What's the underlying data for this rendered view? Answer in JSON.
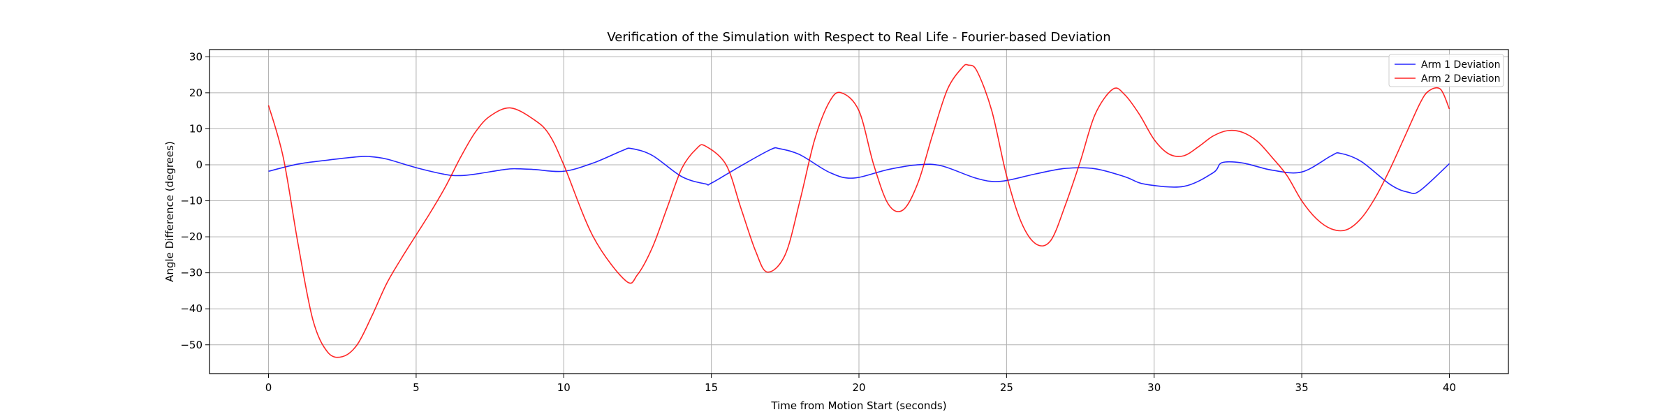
{
  "chart_data": {
    "type": "line",
    "title": "Verification of the Simulation with Respect to Real Life - Fourier-based Deviation",
    "xlabel": "Time from Motion Start (seconds)",
    "ylabel": "Angle Difference (degrees)",
    "xlim": [
      -2,
      42
    ],
    "ylim": [
      -58,
      32
    ],
    "xticks": [
      0,
      5,
      10,
      15,
      20,
      25,
      30,
      35,
      40
    ],
    "yticks": [
      -50,
      -40,
      -30,
      -20,
      -10,
      0,
      10,
      20,
      30
    ],
    "grid": true,
    "legend_position": "top-right",
    "series": [
      {
        "name": "Arm 1 Deviation",
        "color": "#0000ff",
        "x": [
          0,
          1,
          2,
          3,
          3.4,
          4,
          5,
          6,
          6.5,
          7,
          8,
          8.4,
          9,
          10,
          11,
          12,
          12.3,
          13,
          14,
          14.8,
          15,
          16,
          17,
          17.3,
          18,
          19,
          19.8,
          21,
          22,
          22.8,
          24,
          24.8,
          26,
          27,
          28,
          29,
          29.7,
          31,
          32,
          32.3,
          33,
          34,
          35,
          36,
          36.3,
          37,
          38,
          38.6,
          39,
          40
        ],
        "y": [
          -1.8,
          0.2,
          1.3,
          2.2,
          2.3,
          1.6,
          -0.8,
          -2.7,
          -3.0,
          -2.6,
          -1.3,
          -1.1,
          -1.3,
          -1.8,
          0.5,
          4.0,
          4.5,
          2.6,
          -3.3,
          -5.3,
          -5.1,
          -0.3,
          4.2,
          4.5,
          2.8,
          -2.1,
          -3.7,
          -1.3,
          0.0,
          -0.3,
          -3.8,
          -4.6,
          -2.5,
          -1.0,
          -1.1,
          -3.3,
          -5.4,
          -6.0,
          -2.2,
          0.6,
          0.5,
          -1.5,
          -2.0,
          2.5,
          3.2,
          1.0,
          -5.5,
          -7.6,
          -7.2,
          0.3
        ]
      },
      {
        "name": "Arm 2 Deviation",
        "color": "#ff0000",
        "x": [
          0,
          0.5,
          1,
          1.5,
          2,
          2.5,
          3,
          3.5,
          4,
          4.5,
          5,
          5.5,
          6,
          6.5,
          7,
          7.5,
          8.2,
          9,
          9.5,
          10,
          11,
          12.1,
          12.5,
          13,
          13.5,
          14,
          14.5,
          14.8,
          15.5,
          16,
          16.5,
          16.9,
          17.5,
          18,
          18.5,
          19,
          19.4,
          20,
          20.5,
          21,
          21.5,
          22,
          22.5,
          23,
          23.5,
          23.7,
          24,
          24.5,
          25,
          25.5,
          26,
          26.5,
          27,
          27.5,
          28,
          28.6,
          29,
          29.5,
          30,
          30.5,
          31,
          31.5,
          32,
          32.5,
          33,
          33.5,
          34,
          34.5,
          35,
          35.5,
          36,
          36.5,
          37,
          37.5,
          38,
          38.5,
          39,
          39.3,
          39.7,
          40
        ],
        "y": [
          16.5,
          2,
          -22,
          -43,
          -52,
          -53.3,
          -50,
          -42,
          -33,
          -26,
          -19.5,
          -13,
          -6,
          2,
          9,
          13.5,
          15.8,
          12.5,
          8.5,
          0,
          -20,
          -32.2,
          -30.5,
          -23,
          -12,
          -1,
          4.5,
          5.2,
          0,
          -12,
          -24,
          -29.8,
          -25,
          -10,
          7,
          17.5,
          20,
          15,
          0,
          -11,
          -12.5,
          -5,
          8.5,
          21,
          27,
          27.7,
          26,
          15,
          -3,
          -16,
          -22,
          -21,
          -11,
          1,
          14,
          21,
          19.5,
          14,
          7,
          3,
          2.5,
          5,
          8,
          9.5,
          9,
          6.5,
          2,
          -3,
          -10,
          -15,
          -17.8,
          -18.1,
          -15,
          -9,
          -1,
          8,
          17,
          20.5,
          21,
          15.5
        ]
      }
    ]
  }
}
